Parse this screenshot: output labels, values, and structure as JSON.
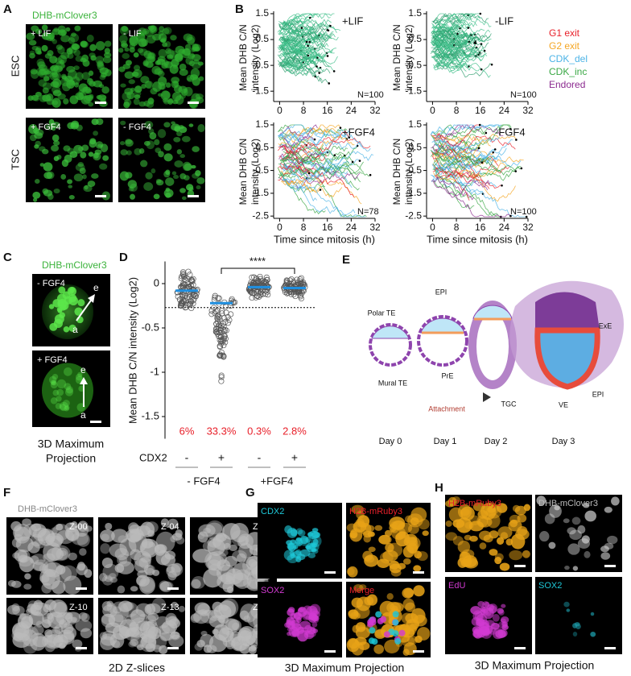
{
  "panels": {
    "A": {
      "letter": "A",
      "label": "DHB-mClover3",
      "rows": [
        "ESC",
        "TSC"
      ],
      "conditions": [
        "+ LIF",
        "- LIF",
        "+ FGF4",
        "- FGF4"
      ]
    },
    "B": {
      "letter": "B",
      "legend": [
        {
          "name": "G1 exit",
          "color": "#e8202a"
        },
        {
          "name": "G2 exit",
          "color": "#f5a623"
        },
        {
          "name": "CDK_del",
          "color": "#4bb3e6"
        },
        {
          "name": "CDK_inc",
          "color": "#3aa845"
        },
        {
          "name": "Endored",
          "color": "#8b2a8f"
        }
      ]
    },
    "C": {
      "letter": "C",
      "label": "DHB-mClover3",
      "conditions": [
        "- FGF4",
        "+ FGF4"
      ],
      "axis_top": "e",
      "axis_bottom": "a",
      "caption": [
        "3D Maximum",
        "Projection"
      ]
    },
    "D": {
      "letter": "D"
    },
    "E": {
      "letter": "E",
      "labels": [
        "Polar TE",
        "EPI",
        "Mural TE",
        "PrE",
        "ExE",
        "TGC",
        "VE",
        "EPI",
        "Attachment"
      ],
      "days": [
        "Day 0",
        "Day 1",
        "Day 2",
        "Day 3"
      ]
    },
    "F": {
      "letter": "F",
      "label": "DHB-mClover3",
      "slices": [
        "Z-00",
        "Z-04",
        "Z-07",
        "Z-10",
        "Z-13",
        "Z-16"
      ],
      "caption": "2D Z-slices"
    },
    "G": {
      "letter": "G",
      "channels": [
        "CDX2",
        "H2B-mRuby3",
        "SOX2",
        "Merge"
      ],
      "caption": "3D Maximum Projection"
    },
    "H": {
      "letter": "H",
      "channels": [
        "H2B-mRuby3",
        "DHB-mClover3",
        "EdU",
        "SOX2"
      ],
      "caption": "3D Maximum Projection"
    }
  },
  "chart_data": [
    {
      "type": "line",
      "title": "+LIF",
      "annotation": "N=100",
      "ylabel": [
        "Mean DHB C/N",
        "intensity (Log2)"
      ],
      "xlim": [
        -2,
        32
      ],
      "xticks": [
        0,
        8,
        16,
        24,
        32
      ],
      "ylim": [
        -1.9,
        1.5
      ],
      "yticks": [
        1.5,
        0.5,
        -0.5,
        -1.5
      ]
    },
    {
      "type": "line",
      "title": "-LIF",
      "annotation": "N=100",
      "ylabel": [
        "Mean DHB C/N",
        "intensity (Log2)"
      ],
      "xlim": [
        -2,
        32
      ],
      "xticks": [
        0,
        8,
        16,
        24,
        32
      ],
      "ylim": [
        -1.9,
        1.5
      ],
      "yticks": [
        1.5,
        0.5,
        -0.5,
        -1.5
      ]
    },
    {
      "type": "line",
      "title": "+FGF4",
      "annotation": "N=78",
      "ylabel": [
        "Mean DHB C/N",
        "intensity (Log2)"
      ],
      "xlabel": "Time since mitosis (h)",
      "xlim": [
        -2,
        32
      ],
      "xticks": [
        0,
        8,
        16,
        24,
        32
      ],
      "ylim": [
        -2.6,
        1.5
      ],
      "yticks": [
        1.5,
        0.5,
        -0.5,
        -1.5,
        -2.5
      ]
    },
    {
      "type": "line",
      "title": "-FGF4",
      "annotation": "N=100",
      "ylabel": [
        "Mean DHB C/N",
        "intensity (Log2)"
      ],
      "xlabel": "Time since mitosis (h)",
      "xlim": [
        -2,
        32
      ],
      "xticks": [
        0,
        8,
        16,
        24,
        32
      ],
      "ylim": [
        -2.6,
        1.5
      ],
      "yticks": [
        1.5,
        0.5,
        -0.5,
        -1.5,
        -2.5
      ]
    },
    {
      "type": "dot",
      "ylabel": "Mean DHB C/N intensity (Log2)",
      "ylim": [
        -1.75,
        0.25
      ],
      "yticks": [
        0,
        -0.5,
        -1,
        -1.5
      ],
      "row_label": "CDX2",
      "categories": [
        "-",
        "+",
        "-",
        "+"
      ],
      "groups": [
        "- FGF4",
        "+FGF4"
      ],
      "means": [
        -0.08,
        -0.22,
        -0.04,
        -0.05
      ],
      "threshold": -0.27,
      "values": [
        6,
        33.3,
        0.3,
        2.8
      ],
      "value_labels": [
        "6%",
        "33.3%",
        "0.3%",
        "2.8%"
      ],
      "significance": "****"
    }
  ]
}
